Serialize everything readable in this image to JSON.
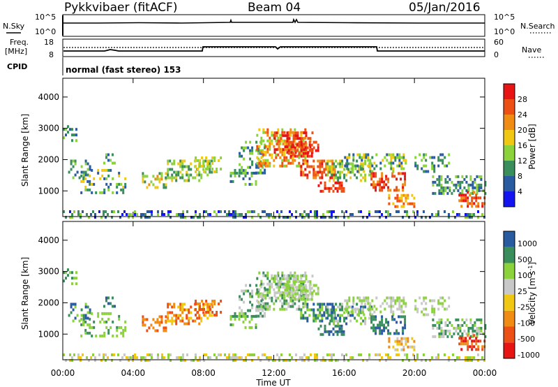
{
  "header": {
    "station": "Pykkvibaer (fitACF)",
    "beam": "Beam 04",
    "date": "05/Jan/2016"
  },
  "noise_panel": {
    "left_label": "N.Sky",
    "left_ticks": [
      "10^5",
      "10^0"
    ],
    "right_label": "N.Search",
    "right_ticks": [
      "10^5",
      "10^0"
    ]
  },
  "freq_panel": {
    "left_label_1": "Freq.",
    "left_label_2": "[MHz]",
    "left_ticks": [
      "18",
      "8"
    ],
    "right_label": "Nave",
    "right_ticks": [
      "60",
      "0"
    ]
  },
  "cpid": {
    "label": "CPID",
    "text": "normal (fast stereo) 153"
  },
  "colors": {
    "power": [
      "#1414f0",
      "#2a5aa0",
      "#3a8e5c",
      "#8cd23c",
      "#f0c814",
      "#f08c14",
      "#ec5014",
      "#e81414"
    ],
    "velocity": [
      "#e81414",
      "#ec5014",
      "#f08c14",
      "#f0c814",
      "#c8c8c8",
      "#8cd23c",
      "#3a8e5c",
      "#2a5aa0"
    ],
    "gray": "#c8c8c8"
  },
  "chart_data": [
    {
      "type": "heatmap",
      "name": "power",
      "ylabel": "Slant Range [km]",
      "ylim": [
        180,
        4600
      ],
      "xlim": [
        0,
        24
      ],
      "yticks": [
        "1000",
        "2000",
        "3000",
        "4000"
      ],
      "xticks": [
        "00:00",
        "04:00",
        "08:00",
        "12:00",
        "16:00",
        "20:00",
        "00:00"
      ],
      "colorbar_label": "Power [dB]",
      "colorbar_ticks": [
        "4",
        "8",
        "12",
        "16",
        "20",
        "24",
        "28"
      ],
      "colorbar_range": [
        0,
        32
      ]
    },
    {
      "type": "heatmap",
      "name": "velocity",
      "ylabel": "Slant Range [km]",
      "xlabel": "Time UT",
      "ylim": [
        180,
        4600
      ],
      "xlim": [
        0,
        24
      ],
      "yticks": [
        "1000",
        "2000",
        "3000",
        "4000"
      ],
      "xticks": [
        "00:00",
        "04:00",
        "08:00",
        "12:00",
        "16:00",
        "20:00",
        "00:00"
      ],
      "colorbar_label": "Velocity [m s",
      "colorbar_label_sup": "-1",
      "colorbar_label_end": "]",
      "colorbar_ticks": [
        "1000",
        "500",
        "100",
        "25",
        "-25",
        "-100",
        "-500",
        "-1000"
      ]
    }
  ]
}
